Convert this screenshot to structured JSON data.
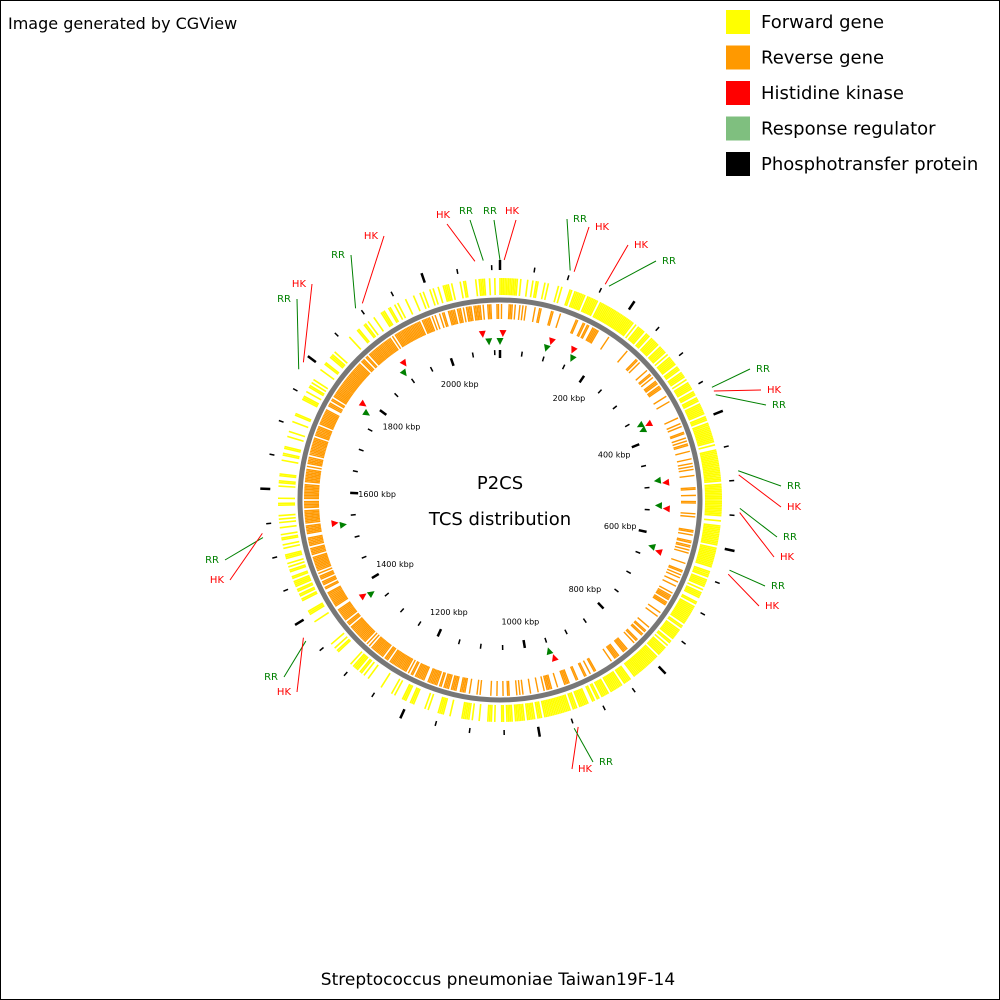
{
  "header": {
    "credit": "Image generated by CGView"
  },
  "center": {
    "title": "P2CS",
    "subtitle": "TCS distribution"
  },
  "footer": {
    "organism": "Streptococcus pneumoniae Taiwan19F-14"
  },
  "legend": [
    {
      "label": "Forward gene",
      "color": "#ffff00"
    },
    {
      "label": "Reverse gene",
      "color": "#ff9900"
    },
    {
      "label": "Histidine kinase",
      "color": "#ff0000"
    },
    {
      "label": "Response regulator",
      "color": "#7fbf7f"
    },
    {
      "label": "Phosphotransfer protein",
      "color": "#000000"
    }
  ],
  "scale_labels": [
    "200 kbp",
    "400 kbp",
    "600 kbp",
    "800 kbp",
    "1000 kbp",
    "1200 kbp",
    "1400 kbp",
    "1600 kbp",
    "1800 kbp",
    "2000 kbp"
  ],
  "callouts": [
    {
      "label": "HK"
    },
    {
      "label": "RR"
    },
    {
      "label": "RR"
    },
    {
      "label": "HK"
    },
    {
      "label": "RR"
    },
    {
      "label": "HK"
    },
    {
      "label": "HK"
    },
    {
      "label": "RR"
    },
    {
      "label": "RR"
    },
    {
      "label": "HK"
    },
    {
      "label": "RR"
    },
    {
      "label": "RR"
    },
    {
      "label": "HK"
    },
    {
      "label": "RR"
    },
    {
      "label": "HK"
    },
    {
      "label": "RR"
    },
    {
      "label": "HK"
    },
    {
      "label": "HK"
    },
    {
      "label": "RR"
    },
    {
      "label": "RR"
    },
    {
      "label": "HK"
    },
    {
      "label": "RR"
    },
    {
      "label": "HK"
    },
    {
      "label": "RR"
    },
    {
      "label": "HK"
    },
    {
      "label": "RR"
    },
    {
      "label": "HK"
    }
  ]
}
